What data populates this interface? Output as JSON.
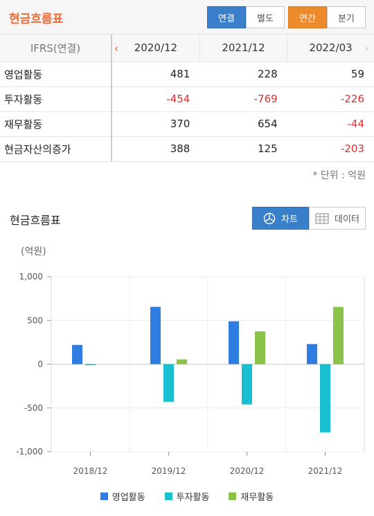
{
  "header": {
    "title": "현금흐름표",
    "scope_tabs": [
      "연결",
      "별도"
    ],
    "period_tabs": [
      "연간",
      "분기"
    ]
  },
  "table": {
    "row_header": "IFRS(연결)",
    "columns": [
      "2020/12",
      "2021/12",
      "2022/03"
    ],
    "rows": [
      {
        "label": "영업활동",
        "values": [
          "481",
          "228",
          "59"
        ]
      },
      {
        "label": "투자활동",
        "values": [
          "-454",
          "-769",
          "-226"
        ]
      },
      {
        "label": "재무활동",
        "values": [
          "370",
          "654",
          "-44"
        ]
      },
      {
        "label": "현금자산의증가",
        "values": [
          "388",
          "125",
          "-203"
        ]
      }
    ],
    "unit_note": "* 단위 : 억원"
  },
  "chart_section": {
    "title": "현금흐름표",
    "view_tabs": [
      "차트",
      "데이터"
    ]
  },
  "colors": {
    "series": [
      "#2f7de0",
      "#17bfd1",
      "#8bc34a"
    ],
    "negative": "#e02b2b",
    "title": "#f06a35"
  },
  "chart_data": {
    "type": "bar",
    "ylabel": "(억원)",
    "categories": [
      "2018/12",
      "2019/12",
      "2020/12",
      "2021/12"
    ],
    "ylim": [
      -1000,
      1000
    ],
    "yticks": [
      1000,
      500,
      0,
      -500,
      -1000
    ],
    "ytick_labels": [
      "1,000",
      "500",
      "0",
      "-500",
      "-1,000"
    ],
    "series": [
      {
        "name": "영업활동",
        "values": [
          220,
          655,
          490,
          230
        ]
      },
      {
        "name": "투자활동",
        "values": [
          -10,
          -430,
          -460,
          -780
        ]
      },
      {
        "name": "재무활동",
        "values": [
          0,
          55,
          375,
          655
        ]
      }
    ],
    "legend_position": "bottom",
    "grid": true
  }
}
